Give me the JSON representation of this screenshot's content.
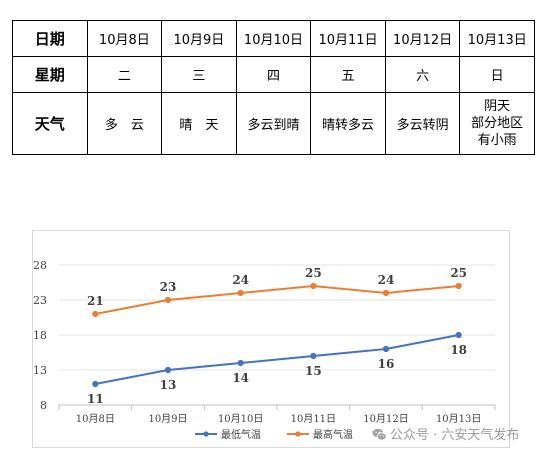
{
  "table": {
    "headers": [
      "日期",
      "星期",
      "天气"
    ],
    "days": [
      {
        "date": "10月8日",
        "weekday": "二",
        "weather": [
          "多　云"
        ]
      },
      {
        "date": "10月9日",
        "weekday": "三",
        "weather": [
          "晴　天"
        ]
      },
      {
        "date": "10月10日",
        "weekday": "四",
        "weather": [
          "多云到晴"
        ]
      },
      {
        "date": "10月11日",
        "weekday": "五",
        "weather": [
          "晴转多云"
        ]
      },
      {
        "date": "10月12日",
        "weekday": "六",
        "weather": [
          "多云转阴"
        ]
      },
      {
        "date": "10月13日",
        "weekday": "日",
        "weather": [
          "阴天",
          "部分地区",
          "有小雨"
        ]
      }
    ]
  },
  "chart_data": {
    "type": "line",
    "categories": [
      "10月8日",
      "10月9日",
      "10月10日",
      "10月11日",
      "10月12日",
      "10月13日"
    ],
    "series": [
      {
        "name": "最低气温",
        "color": "#4472c4",
        "values": [
          11,
          13,
          14,
          15,
          16,
          18
        ],
        "label_position": "below"
      },
      {
        "name": "最高气温",
        "color": "#ed7d31",
        "values": [
          21,
          23,
          24,
          25,
          24,
          25
        ],
        "label_position": "above"
      }
    ],
    "yticks": [
      8,
      13,
      18,
      23,
      28
    ],
    "ylim": [
      8,
      28
    ],
    "grid": true,
    "legend": "bottom"
  },
  "watermark": {
    "text": "公众号 · 六安天气发布",
    "icon": "wechat-icon"
  }
}
